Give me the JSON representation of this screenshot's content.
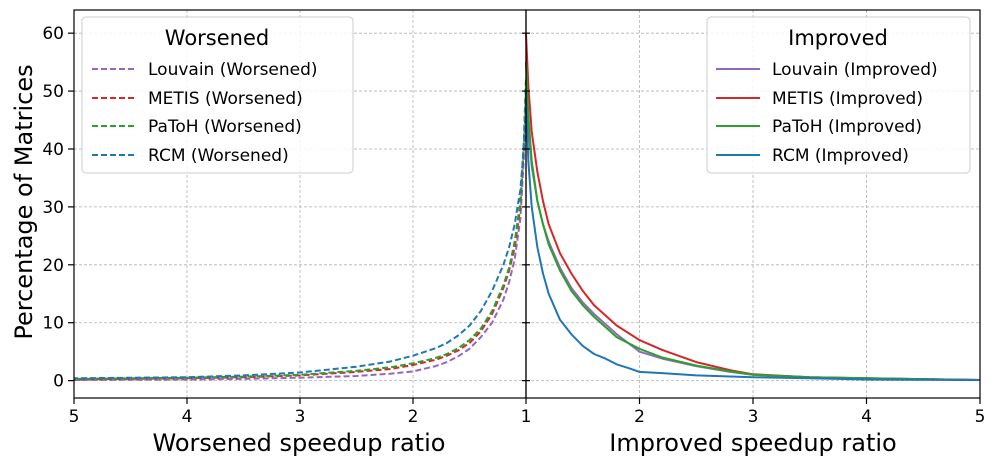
{
  "chart_data": {
    "type": "line",
    "ylabel": "Percentage of Matrices",
    "ylim": [
      -3,
      64
    ],
    "y_ticks": [
      0,
      10,
      20,
      30,
      40,
      50,
      60
    ],
    "grid": true,
    "panels": [
      {
        "id": "worsened",
        "xlabel": "Worsened speedup ratio",
        "xlim": [
          5,
          1
        ],
        "x_ticks": [
          5,
          4,
          3,
          2,
          1
        ],
        "legend_title": "Worsened",
        "legend_position": "top-left",
        "line_style": "dashed",
        "series": [
          {
            "name": "Louvain (Worsened)",
            "color": "#9467bd",
            "x": [
              1.0,
              1.02,
              1.05,
              1.1,
              1.15,
              1.2,
              1.3,
              1.4,
              1.5,
              1.6,
              1.7,
              1.8,
              2.0,
              2.2,
              2.5,
              3.0,
              3.5,
              4.0,
              5.0
            ],
            "y": [
              50,
              38,
              28,
              21,
              17,
              14,
              10,
              7.5,
              5.5,
              4.2,
              3.2,
              2.5,
              1.6,
              1.2,
              0.8,
              0.5,
              0.3,
              0.2,
              0.1
            ]
          },
          {
            "name": "METIS (Worsened)",
            "color": "#d62728",
            "x": [
              1.0,
              1.02,
              1.05,
              1.1,
              1.15,
              1.2,
              1.3,
              1.4,
              1.5,
              1.6,
              1.7,
              1.8,
              2.0,
              2.2,
              2.5,
              3.0,
              3.5,
              4.0,
              5.0
            ],
            "y": [
              52,
              40,
              30,
              23,
              19,
              16,
              11.5,
              8.5,
              6.5,
              5.2,
              4.3,
              3.6,
              2.7,
              2.0,
              1.5,
              0.9,
              0.6,
              0.4,
              0.2
            ]
          },
          {
            "name": "PaToH (Worsened)",
            "color": "#2ca02c",
            "x": [
              1.0,
              1.02,
              1.05,
              1.1,
              1.15,
              1.2,
              1.3,
              1.4,
              1.5,
              1.6,
              1.7,
              1.8,
              2.0,
              2.2,
              2.5,
              3.0,
              3.5,
              4.0,
              5.0
            ],
            "y": [
              52,
              41,
              31,
              24,
              19.5,
              16.5,
              12,
              9,
              7,
              5.6,
              4.6,
              3.9,
              3.0,
              2.3,
              1.7,
              1.0,
              0.7,
              0.5,
              0.3
            ]
          },
          {
            "name": "RCM (Worsened)",
            "color": "#1f77b4",
            "x": [
              1.0,
              1.02,
              1.05,
              1.1,
              1.15,
              1.2,
              1.3,
              1.4,
              1.5,
              1.6,
              1.7,
              1.8,
              2.0,
              2.2,
              2.5,
              3.0,
              3.5,
              4.0,
              5.0
            ],
            "y": [
              47,
              40,
              33,
              27,
              23,
              20,
              15.5,
              12,
              9.5,
              7.8,
              6.5,
              5.6,
              4.3,
              3.3,
              2.4,
              1.4,
              0.9,
              0.6,
              0.4
            ]
          }
        ]
      },
      {
        "id": "improved",
        "xlabel": "Improved speedup ratio",
        "xlim": [
          1,
          5
        ],
        "x_ticks": [
          1,
          2,
          3,
          4,
          5
        ],
        "legend_title": "Improved",
        "legend_position": "top-right",
        "line_style": "solid",
        "series": [
          {
            "name": "Louvain (Improved)",
            "color": "#9467bd",
            "x": [
              1.0,
              1.02,
              1.05,
              1.1,
              1.15,
              1.2,
              1.3,
              1.4,
              1.5,
              1.6,
              1.8,
              2.0,
              2.2,
              2.5,
              2.8,
              3.0,
              3.5,
              4.0,
              5.0
            ],
            "y": [
              52,
              44,
              37,
              31,
              27,
              24,
              19.5,
              16,
              13.5,
              11.5,
              8.0,
              5.0,
              3.8,
              2.5,
              1.5,
              1.0,
              0.6,
              0.4,
              0.1
            ]
          },
          {
            "name": "METIS (Improved)",
            "color": "#d62728",
            "x": [
              1.0,
              1.02,
              1.05,
              1.1,
              1.15,
              1.2,
              1.3,
              1.4,
              1.5,
              1.6,
              1.8,
              2.0,
              2.2,
              2.5,
              2.8,
              3.0,
              3.5,
              4.0,
              5.0
            ],
            "y": [
              60,
              51,
              43,
              36,
              31,
              27,
              22,
              18.5,
              15.5,
              13,
              9.5,
              7.0,
              5.3,
              3.2,
              1.8,
              1.1,
              0.6,
              0.4,
              0.1
            ]
          },
          {
            "name": "PaToH (Improved)",
            "color": "#2ca02c",
            "x": [
              1.0,
              1.02,
              1.05,
              1.1,
              1.15,
              1.2,
              1.3,
              1.4,
              1.5,
              1.6,
              1.8,
              2.0,
              2.2,
              2.5,
              2.8,
              3.0,
              3.5,
              4.0,
              5.0
            ],
            "y": [
              55,
              46,
              38,
              31,
              27,
              23.5,
              19,
              15.5,
              13,
              11,
              7.5,
              5.5,
              4.0,
              2.6,
              1.6,
              1.0,
              0.6,
              0.4,
              0.1
            ]
          },
          {
            "name": "RCM (Improved)",
            "color": "#1f77b4",
            "x": [
              1.0,
              1.02,
              1.05,
              1.1,
              1.15,
              1.2,
              1.3,
              1.4,
              1.5,
              1.6,
              1.7,
              1.8,
              1.9,
              2.0,
              2.2,
              2.5,
              3.0,
              3.5,
              4.0,
              5.0
            ],
            "y": [
              50,
              38,
              30,
              23,
              18.5,
              15,
              10.5,
              8,
              6,
              4.6,
              3.8,
              2.8,
              2.2,
              1.5,
              1.3,
              0.9,
              0.6,
              0.4,
              0.2,
              0.1
            ]
          }
        ]
      }
    ]
  }
}
